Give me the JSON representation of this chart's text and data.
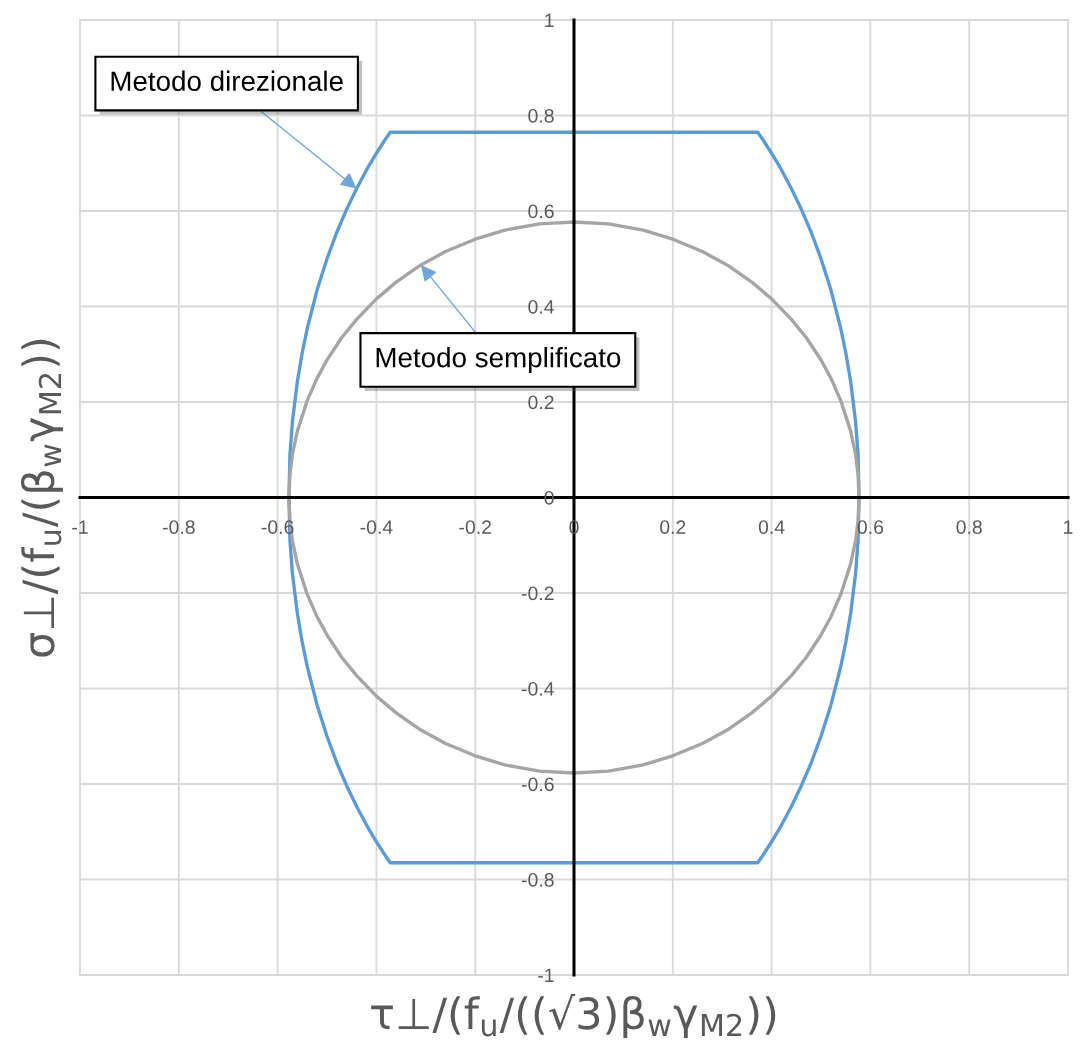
{
  "chart_data": {
    "type": "line",
    "xlabel": "τ⊥/(f$_{u}$/((√3)β$_{w}$γ$_{M2}$))",
    "ylabel": "σ⊥/(f$_{u}$/(β$_{w}$γ$_{M2}$))",
    "xlim": [
      -1,
      1
    ],
    "ylim": [
      -1,
      1
    ],
    "xticks": [
      -1,
      -0.8,
      -0.6,
      -0.4,
      -0.2,
      0,
      0.2,
      0.4,
      0.6,
      0.8,
      1
    ],
    "yticks": [
      -1,
      -0.8,
      -0.6,
      -0.4,
      -0.2,
      0,
      0.2,
      0.4,
      0.6,
      0.8,
      1
    ],
    "grid": true,
    "series": [
      {
        "color": "#5b9bd5",
        "x": [
          -0.577,
          -0.575,
          -0.57,
          -0.56,
          -0.55,
          -0.54,
          -0.52,
          -0.5,
          -0.48,
          -0.46,
          -0.44,
          -0.42,
          -0.4,
          -0.38,
          -0.372,
          0.372,
          0.38,
          0.4,
          0.42,
          0.44,
          0.46,
          0.48,
          0.5,
          0.52,
          0.54,
          0.55,
          0.56,
          0.57,
          0.575,
          0.577,
          null,
          -0.577,
          -0.575,
          -0.57,
          -0.56,
          -0.55,
          -0.54,
          -0.52,
          -0.5,
          -0.48,
          -0.46,
          -0.44,
          -0.42,
          -0.4,
          -0.38,
          -0.372,
          0.372,
          0.38,
          0.4,
          0.42,
          0.44,
          0.46,
          0.48,
          0.5,
          0.52,
          0.54,
          0.55,
          0.56,
          0.57,
          0.575,
          0.577
        ],
        "values": [
          0,
          0.09,
          0.159,
          0.243,
          0.304,
          0.354,
          0.435,
          0.5,
          0.556,
          0.604,
          0.647,
          0.686,
          0.721,
          0.753,
          0.765,
          0.765,
          0.753,
          0.721,
          0.686,
          0.647,
          0.604,
          0.556,
          0.5,
          0.435,
          0.354,
          0.304,
          0.243,
          0.159,
          0.09,
          0,
          null,
          0,
          -0.09,
          -0.159,
          -0.243,
          -0.304,
          -0.354,
          -0.435,
          -0.5,
          -0.556,
          -0.604,
          -0.647,
          -0.686,
          -0.721,
          -0.753,
          -0.765,
          -0.765,
          -0.753,
          -0.721,
          -0.686,
          -0.647,
          -0.604,
          -0.556,
          -0.5,
          -0.435,
          -0.354,
          -0.304,
          -0.243,
          -0.159,
          -0.09,
          0
        ]
      },
      {
        "color": "#a5a5a5",
        "x": [
          -0.577,
          -0.575,
          -0.57,
          -0.56,
          -0.54,
          -0.52,
          -0.5,
          -0.47,
          -0.44,
          -0.4,
          -0.36,
          -0.31,
          -0.26,
          -0.2,
          -0.14,
          -0.07,
          0,
          0.07,
          0.14,
          0.2,
          0.26,
          0.31,
          0.36,
          0.4,
          0.44,
          0.47,
          0.5,
          0.52,
          0.54,
          0.56,
          0.57,
          0.575,
          0.577,
          null,
          -0.577,
          -0.575,
          -0.57,
          -0.56,
          -0.54,
          -0.52,
          -0.5,
          -0.47,
          -0.44,
          -0.4,
          -0.36,
          -0.31,
          -0.26,
          -0.2,
          -0.14,
          -0.07,
          0,
          0.07,
          0.14,
          0.2,
          0.26,
          0.31,
          0.36,
          0.4,
          0.44,
          0.47,
          0.5,
          0.52,
          0.54,
          0.56,
          0.57,
          0.575,
          0.577
        ],
        "values": [
          0,
          0.048,
          0.09,
          0.139,
          0.203,
          0.25,
          0.288,
          0.335,
          0.373,
          0.416,
          0.451,
          0.487,
          0.515,
          0.541,
          0.56,
          0.573,
          0.577,
          0.573,
          0.56,
          0.541,
          0.515,
          0.487,
          0.451,
          0.416,
          0.373,
          0.335,
          0.288,
          0.25,
          0.203,
          0.139,
          0.09,
          0.048,
          0,
          null,
          0,
          -0.048,
          -0.09,
          -0.139,
          -0.203,
          -0.25,
          -0.288,
          -0.335,
          -0.373,
          -0.416,
          -0.451,
          -0.487,
          -0.515,
          -0.541,
          -0.56,
          -0.573,
          -0.577,
          -0.573,
          -0.56,
          -0.541,
          -0.515,
          -0.487,
          -0.451,
          -0.416,
          -0.373,
          -0.335,
          -0.288,
          -0.25,
          -0.203,
          -0.139,
          -0.09,
          -0.048,
          0
        ]
      }
    ],
    "annotations": [
      {
        "text": "Metodo direzionale",
        "x": -0.44,
        "y": 0.647
      },
      {
        "text": "Metodo semplificato",
        "x": -0.31,
        "y": 0.487
      }
    ]
  }
}
